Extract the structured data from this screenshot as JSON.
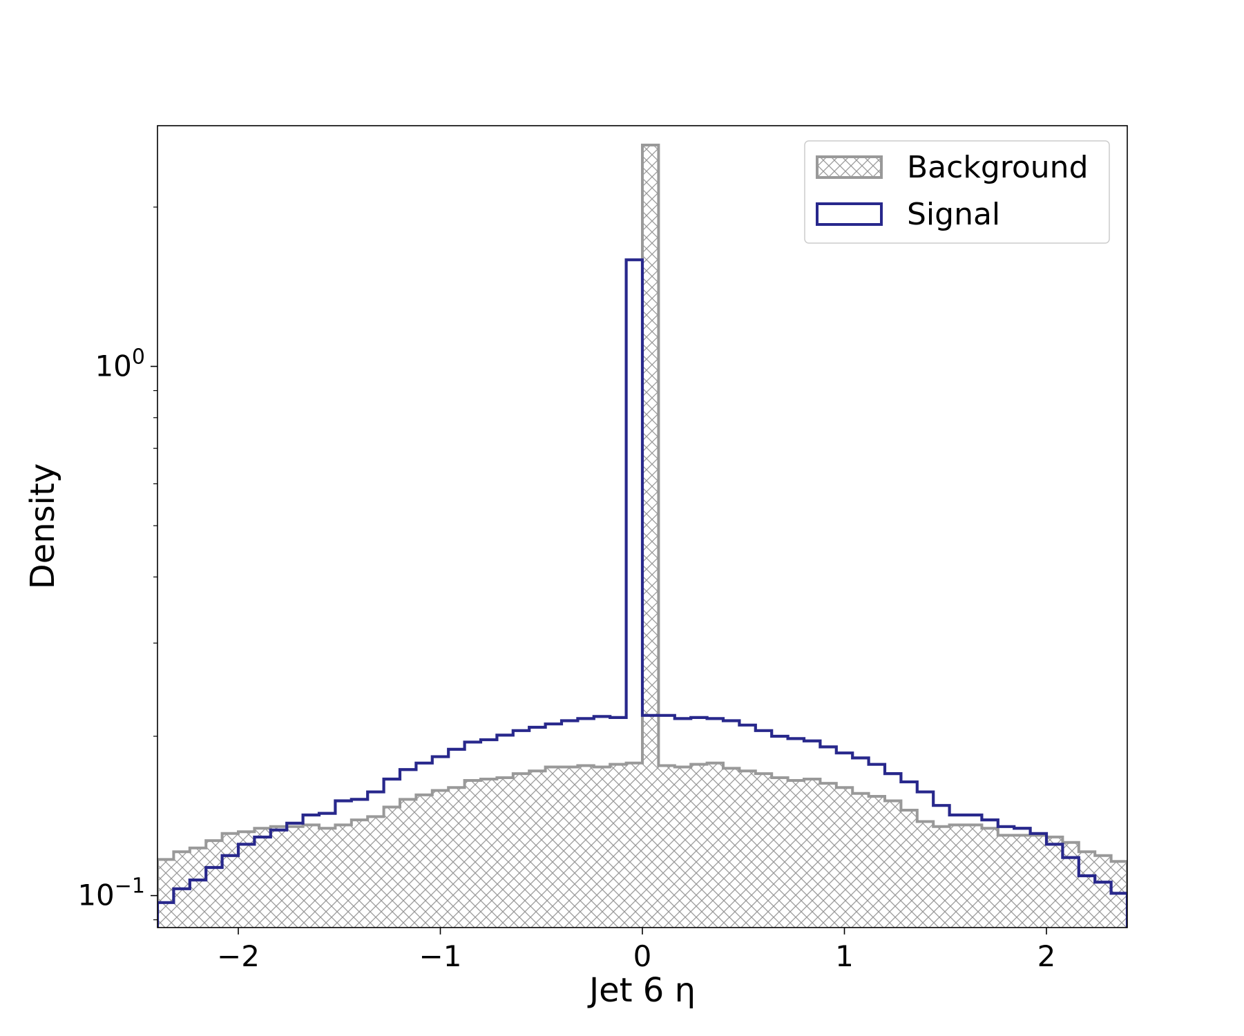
{
  "chart_data": {
    "type": "histogram",
    "xlabel": "Jet 6 η",
    "ylabel": "Density",
    "xlim": [
      -2.4,
      2.4
    ],
    "ylim": [
      0.087,
      2.85
    ],
    "yscale": "log",
    "xticks": [
      {
        "value": -2,
        "label": "−2"
      },
      {
        "value": -1,
        "label": "−1"
      },
      {
        "value": 0,
        "label": "0"
      },
      {
        "value": 1,
        "label": "1"
      },
      {
        "value": 2,
        "label": "2"
      }
    ],
    "yticks": [
      {
        "value": 0.1,
        "base": "10",
        "exp": "−1"
      },
      {
        "value": 1,
        "base": "10",
        "exp": "0"
      }
    ],
    "legend_position": "top-right",
    "bin_edges": [
      -2.4,
      -2.32,
      -2.24,
      -2.16,
      -2.08,
      -2.0,
      -1.92,
      -1.84,
      -1.76,
      -1.68,
      -1.6,
      -1.52,
      -1.44,
      -1.36,
      -1.28,
      -1.2,
      -1.12,
      -1.04,
      -0.96,
      -0.88,
      -0.8,
      -0.72,
      -0.64,
      -0.56,
      -0.48,
      -0.4,
      -0.32,
      -0.24,
      -0.16,
      -0.08,
      0.0,
      0.08,
      0.16,
      0.24,
      0.32,
      0.4,
      0.48,
      0.56,
      0.64,
      0.72,
      0.8,
      0.88,
      0.96,
      1.04,
      1.12,
      1.2,
      1.28,
      1.36,
      1.44,
      1.52,
      1.6,
      1.68,
      1.76,
      1.84,
      1.92,
      2.0,
      2.08,
      2.16,
      2.24,
      2.32,
      2.4
    ],
    "series": [
      {
        "name": "Background",
        "style": "filled-hatch",
        "color": "#999999",
        "values": [
          0.117,
          0.121,
          0.123,
          0.127,
          0.131,
          0.132,
          0.134,
          0.135,
          0.135,
          0.136,
          0.134,
          0.136,
          0.139,
          0.141,
          0.147,
          0.152,
          0.155,
          0.158,
          0.16,
          0.165,
          0.166,
          0.167,
          0.17,
          0.172,
          0.175,
          0.175,
          0.176,
          0.175,
          0.177,
          0.178,
          2.62,
          0.176,
          0.175,
          0.177,
          0.178,
          0.174,
          0.172,
          0.17,
          0.167,
          0.165,
          0.166,
          0.163,
          0.16,
          0.156,
          0.154,
          0.151,
          0.145,
          0.138,
          0.135,
          0.136,
          0.136,
          0.134,
          0.13,
          0.13,
          0.13,
          0.129,
          0.126,
          0.121,
          0.119,
          0.116
        ]
      },
      {
        "name": "Signal",
        "style": "step",
        "color": "#28288c",
        "values": [
          0.097,
          0.103,
          0.107,
          0.113,
          0.119,
          0.125,
          0.129,
          0.133,
          0.137,
          0.142,
          0.143,
          0.151,
          0.152,
          0.157,
          0.166,
          0.173,
          0.178,
          0.183,
          0.189,
          0.195,
          0.197,
          0.201,
          0.205,
          0.208,
          0.211,
          0.214,
          0.216,
          0.218,
          0.217,
          1.59,
          0.219,
          0.219,
          0.216,
          0.217,
          0.216,
          0.214,
          0.21,
          0.205,
          0.2,
          0.198,
          0.196,
          0.191,
          0.186,
          0.182,
          0.177,
          0.17,
          0.164,
          0.157,
          0.148,
          0.142,
          0.142,
          0.139,
          0.135,
          0.134,
          0.131,
          0.125,
          0.118,
          0.109,
          0.106,
          0.101
        ]
      }
    ]
  }
}
